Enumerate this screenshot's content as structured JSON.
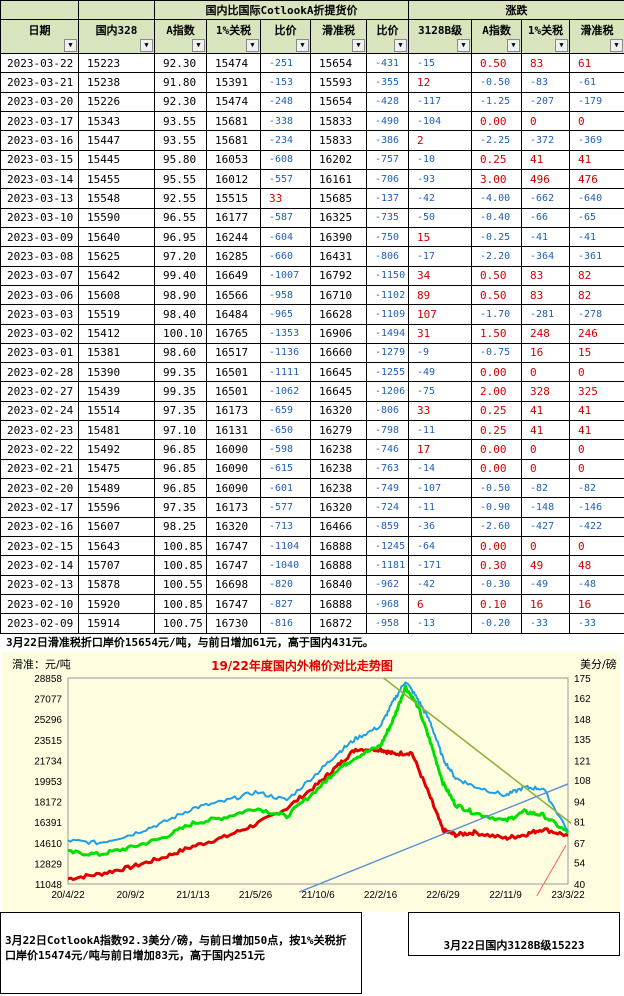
{
  "table": {
    "group_header": "国内比国际CotlookA折提货价",
    "change_header": "涨跌",
    "columns": [
      "日期",
      "国内328",
      "A指数",
      "1%关税",
      "比价",
      "滑准税",
      "比价",
      "3128B级",
      "A指数",
      "1%关税",
      "滑准税"
    ],
    "rows": [
      [
        "2023-03-22",
        "15223",
        "92.30",
        "15474",
        "-251",
        "15654",
        "-431",
        "-15",
        "0.50",
        "83",
        "61"
      ],
      [
        "2023-03-21",
        "15238",
        "91.80",
        "15391",
        "-153",
        "15593",
        "-355",
        "12",
        "-0.50",
        "-83",
        "-61"
      ],
      [
        "2023-03-20",
        "15226",
        "92.30",
        "15474",
        "-248",
        "15654",
        "-428",
        "-117",
        "-1.25",
        "-207",
        "-179"
      ],
      [
        "2023-03-17",
        "15343",
        "93.55",
        "15681",
        "-338",
        "15833",
        "-490",
        "-104",
        "0.00",
        "0",
        "0"
      ],
      [
        "2023-03-16",
        "15447",
        "93.55",
        "15681",
        "-234",
        "15833",
        "-386",
        "2",
        "-2.25",
        "-372",
        "-369"
      ],
      [
        "2023-03-15",
        "15445",
        "95.80",
        "16053",
        "-608",
        "16202",
        "-757",
        "-10",
        "0.25",
        "41",
        "41"
      ],
      [
        "2023-03-14",
        "15455",
        "95.55",
        "16012",
        "-557",
        "16161",
        "-706",
        "-93",
        "3.00",
        "496",
        "476"
      ],
      [
        "2023-03-13",
        "15548",
        "92.55",
        "15515",
        "33",
        "15685",
        "-137",
        "-42",
        "-4.00",
        "-662",
        "-640"
      ],
      [
        "2023-03-10",
        "15590",
        "96.55",
        "16177",
        "-587",
        "16325",
        "-735",
        "-50",
        "-0.40",
        "-66",
        "-65"
      ],
      [
        "2023-03-09",
        "15640",
        "96.95",
        "16244",
        "-604",
        "16390",
        "-750",
        "15",
        "-0.25",
        "-41",
        "-41"
      ],
      [
        "2023-03-08",
        "15625",
        "97.20",
        "16285",
        "-660",
        "16431",
        "-806",
        "-17",
        "-2.20",
        "-364",
        "-361"
      ],
      [
        "2023-03-07",
        "15642",
        "99.40",
        "16649",
        "-1007",
        "16792",
        "-1150",
        "34",
        "0.50",
        "83",
        "82"
      ],
      [
        "2023-03-06",
        "15608",
        "98.90",
        "16566",
        "-958",
        "16710",
        "-1102",
        "89",
        "0.50",
        "83",
        "82"
      ],
      [
        "2023-03-03",
        "15519",
        "98.40",
        "16484",
        "-965",
        "16628",
        "-1109",
        "107",
        "-1.70",
        "-281",
        "-278"
      ],
      [
        "2023-03-02",
        "15412",
        "100.10",
        "16765",
        "-1353",
        "16906",
        "-1494",
        "31",
        "1.50",
        "248",
        "246"
      ],
      [
        "2023-03-01",
        "15381",
        "98.60",
        "16517",
        "-1136",
        "16660",
        "-1279",
        "-9",
        "-0.75",
        "16",
        "15"
      ],
      [
        "2023-02-28",
        "15390",
        "99.35",
        "16501",
        "-1111",
        "16645",
        "-1255",
        "-49",
        "0.00",
        "0",
        "0"
      ],
      [
        "2023-02-27",
        "15439",
        "99.35",
        "16501",
        "-1062",
        "16645",
        "-1206",
        "-75",
        "2.00",
        "328",
        "325"
      ],
      [
        "2023-02-24",
        "15514",
        "97.35",
        "16173",
        "-659",
        "16320",
        "-806",
        "33",
        "0.25",
        "41",
        "41"
      ],
      [
        "2023-02-23",
        "15481",
        "97.10",
        "16131",
        "-650",
        "16279",
        "-798",
        "-11",
        "0.25",
        "41",
        "41"
      ],
      [
        "2023-02-22",
        "15492",
        "96.85",
        "16090",
        "-598",
        "16238",
        "-746",
        "17",
        "0.00",
        "0",
        "0"
      ],
      [
        "2023-02-21",
        "15475",
        "96.85",
        "16090",
        "-615",
        "16238",
        "-763",
        "-14",
        "0.00",
        "0",
        "0"
      ],
      [
        "2023-02-20",
        "15489",
        "96.85",
        "16090",
        "-601",
        "16238",
        "-749",
        "-107",
        "-0.50",
        "-82",
        "-82"
      ],
      [
        "2023-02-17",
        "15596",
        "97.35",
        "16173",
        "-577",
        "16320",
        "-724",
        "-11",
        "-0.90",
        "-148",
        "-146"
      ],
      [
        "2023-02-16",
        "15607",
        "98.25",
        "16320",
        "-713",
        "16466",
        "-859",
        "-36",
        "-2.60",
        "-427",
        "-422"
      ],
      [
        "2023-02-15",
        "15643",
        "100.85",
        "16747",
        "-1104",
        "16888",
        "-1245",
        "-64",
        "0.00",
        "0",
        "0"
      ],
      [
        "2023-02-14",
        "15707",
        "100.85",
        "16747",
        "-1040",
        "16888",
        "-1181",
        "-171",
        "0.30",
        "49",
        "48"
      ],
      [
        "2023-02-13",
        "15878",
        "100.55",
        "16698",
        "-820",
        "16840",
        "-962",
        "-42",
        "-0.30",
        "-49",
        "-48"
      ],
      [
        "2023-02-10",
        "15920",
        "100.85",
        "16747",
        "-827",
        "16888",
        "-968",
        "6",
        "0.10",
        "16",
        "16"
      ],
      [
        "2023-02-09",
        "15914",
        "100.75",
        "16730",
        "-816",
        "16872",
        "-958",
        "-13",
        "-0.20",
        "-33",
        "-33"
      ]
    ]
  },
  "notes": {
    "top": "3月22日滑准税折口岸价15654元/吨，与前日增加61元，高于国内431元。",
    "bottom_left": "3月22日CotlookA指数92.3美分/磅，与前日增加50点，按1%关税折口岸价15474元/吨与前日增加83元，高于国内251元",
    "bottom_right": "3月22日国内3128B级15223"
  },
  "colors": {
    "header_bg": "#d7e4bd",
    "chart_bg": "#fffde0",
    "domestic": "#e00000",
    "a_1pct": "#00e000",
    "a_slide": "#1e9fe6",
    "trend_green": "#8cb43c",
    "trend_blue": "#5b8fd4",
    "negative_text": "#1f5fb4",
    "positive_text": "#d00000"
  },
  "chart_data": {
    "type": "line",
    "title": "19/22年度国内外棉价对比走势图",
    "ylabel_left": "滑准：元/吨",
    "ylabel_right": "美分/磅",
    "x_ticks": [
      "20/4/22",
      "20/9/2",
      "21/1/13",
      "21/5/26",
      "21/10/6",
      "22/2/16",
      "22/6/29",
      "22/11/9",
      "23/3/22"
    ],
    "y_left_ticks": [
      11048,
      12829,
      14610,
      16391,
      18172,
      19953,
      21734,
      23515,
      25296,
      27077,
      28858
    ],
    "y_right_ticks": [
      40,
      54,
      67,
      81,
      94,
      108,
      121,
      135,
      148,
      162,
      175
    ],
    "ylim_left": [
      11048,
      28858
    ],
    "ylim_right": [
      40,
      175
    ],
    "series": [
      {
        "color": "red",
        "x_index": [
          0,
          0.5,
          1,
          1.5,
          2,
          2.5,
          3,
          3.5,
          4,
          4.3,
          4.6,
          5,
          5.2,
          5.5,
          5.8,
          6,
          6.2,
          6.5,
          7,
          7.3,
          7.6,
          8
        ],
        "values": [
          11500,
          11900,
          12500,
          13300,
          14300,
          15100,
          16200,
          17600,
          19700,
          21200,
          22700,
          22700,
          22300,
          22400,
          18500,
          15700,
          15300,
          15500,
          15000,
          15300,
          15800,
          15223
        ]
      },
      {
        "color": "green",
        "x_index": [
          0,
          0.5,
          1,
          1.5,
          2,
          2.5,
          3,
          3.5,
          4,
          4.3,
          4.6,
          5,
          5.2,
          5.4,
          5.6,
          5.8,
          6,
          6.2,
          6.5,
          7,
          7.3,
          7.6,
          8
        ],
        "values": [
          13800,
          13600,
          14200,
          15000,
          16300,
          16800,
          17600,
          16900,
          19300,
          20900,
          22000,
          23000,
          25200,
          28100,
          26400,
          23300,
          19800,
          17900,
          17200,
          16500,
          17300,
          17000,
          15474
        ]
      },
      {
        "color": "blue",
        "x_index": [
          0,
          0.5,
          1,
          1.5,
          2,
          2.5,
          3,
          3.5,
          4,
          4.3,
          4.6,
          5,
          5.2,
          5.4,
          5.6,
          5.8,
          6,
          6.2,
          6.5,
          7,
          7.3,
          7.6,
          8
        ],
        "values": [
          14800,
          14600,
          15300,
          16300,
          17600,
          18200,
          19000,
          18300,
          20700,
          22300,
          23600,
          24700,
          26800,
          28600,
          27000,
          25000,
          21900,
          20200,
          19500,
          18700,
          19400,
          19300,
          15654
        ]
      }
    ]
  }
}
